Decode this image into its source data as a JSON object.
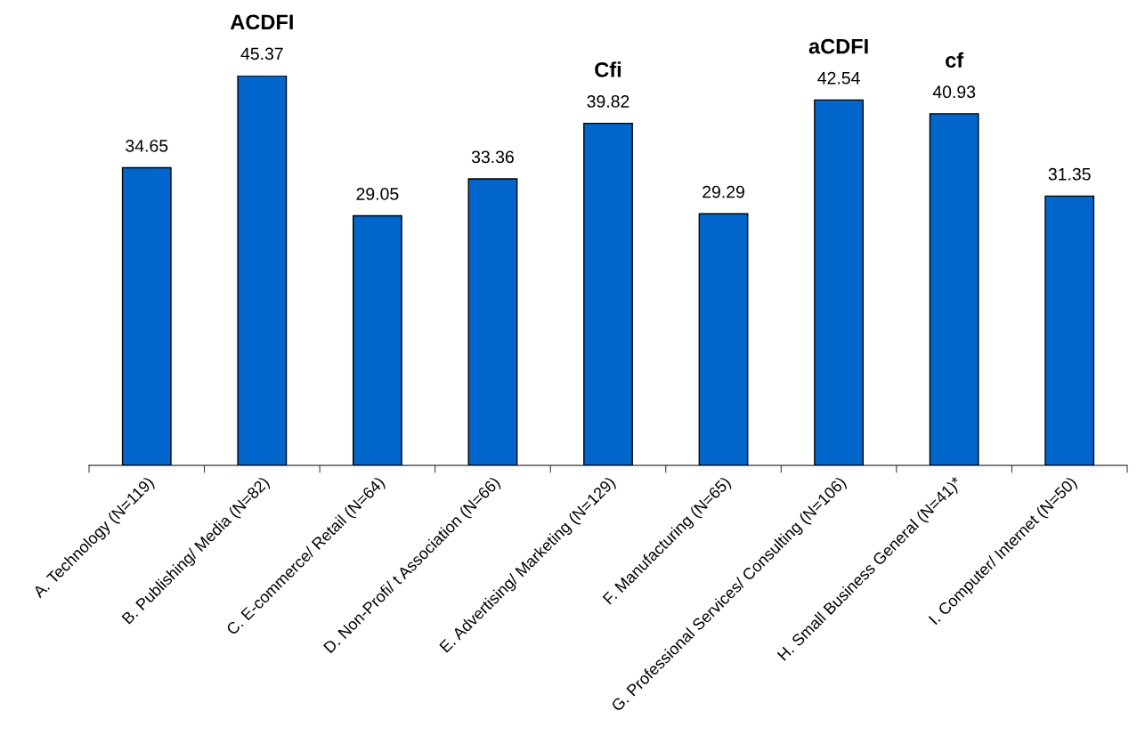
{
  "chart_data": {
    "type": "bar",
    "categories": [
      "A. Technology (N=119)",
      "B. Publishing/ Media (N=82)",
      "C. E-commerce/ Retail (N=64)",
      "D. Non-Profi/ t Association (N=66)",
      "E. Advertising/ Marketing (N=129)",
      "F. Manufacturing (N=65)",
      "G. Professional Services/ Consulting (N=106)",
      "H. Small Business General (N=41)*",
      "I. Computer/ Internet (N=50)"
    ],
    "values": [
      34.65,
      45.37,
      29.05,
      33.36,
      39.82,
      29.29,
      42.54,
      40.93,
      31.35
    ],
    "color": "#0066cc",
    "data_labels": true,
    "tick_labels": "x",
    "grid": false,
    "legend": false,
    "annotations": [
      {
        "text": "ACDFI",
        "x": "B. Publishing/ Media (N=82)",
        "y": 45.37
      },
      {
        "text": "Cfi",
        "x": "E. Advertising/ Marketing (N=129)",
        "y": 39.82
      },
      {
        "text": "aCDFI",
        "x": "G. Professional Services/ Consulting (N=106)",
        "y": 42.54
      },
      {
        "text": "cf",
        "x": "H. Small Business General (N=41)*",
        "y": 40.93
      }
    ]
  }
}
